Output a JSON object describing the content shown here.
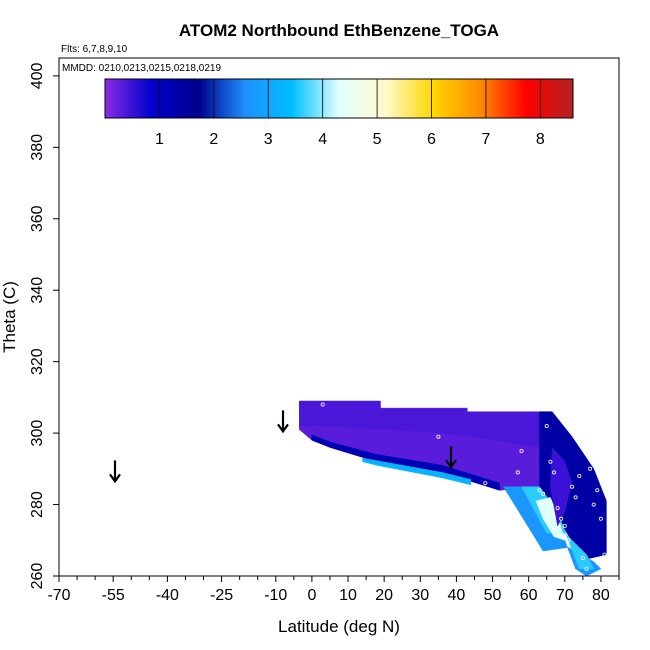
{
  "chart_data": {
    "type": "heatmap",
    "title": "ATOM2 Northbound EthBenzene_TOGA",
    "subtitle_flights": "Flts: 6,7,8,9,10",
    "subtitle_dates": "MMDD: 0210,0213,0215,0218,0219",
    "xlabel": "Latitude (deg N)",
    "ylabel": "Theta (C)",
    "xlim": [
      -70,
      85
    ],
    "ylim": [
      260,
      405
    ],
    "x_ticks": [
      -70,
      -55,
      -40,
      -25,
      -10,
      0,
      10,
      20,
      30,
      40,
      50,
      60,
      70,
      80
    ],
    "x_tick_labels": [
      "-70",
      "-55",
      "-40",
      "-25",
      "-10",
      "0",
      "10",
      "20",
      "30",
      "40",
      "50",
      "60",
      "70",
      "80"
    ],
    "x_minor_ticks": [
      -65,
      -60,
      -50,
      -45,
      -35,
      -30,
      -20,
      -15,
      -5,
      5,
      15,
      25,
      35,
      45,
      55,
      65,
      75,
      85
    ],
    "y_ticks": [
      260,
      280,
      300,
      320,
      340,
      360,
      380,
      400
    ],
    "y_tick_labels": [
      "260",
      "280",
      "300",
      "320",
      "340",
      "360",
      "380",
      "400"
    ],
    "colorbar": {
      "min": 0,
      "max": 8.6,
      "ticks": [
        1,
        2,
        3,
        4,
        5,
        6,
        7,
        8
      ],
      "tick_labels": [
        "1",
        "2",
        "3",
        "4",
        "5",
        "6",
        "7",
        "8"
      ],
      "colors": [
        "#8a2be2",
        "#0000cd",
        "#00008b",
        "#1e90ff",
        "#00bfff",
        "#e0ffff",
        "#fffacd",
        "#ffd700",
        "#ff8c00",
        "#ff0000",
        "#b22222"
      ]
    },
    "arrows": [
      {
        "lat": -54.5,
        "theta": 289
      },
      {
        "lat": -8,
        "theta": 303
      },
      {
        "lat": 38.5,
        "theta": 293
      }
    ],
    "regions": [
      {
        "name": "upper band",
        "value": 0.4,
        "polygon": [
          [
            -3.5,
            309
          ],
          [
            19,
            309
          ],
          [
            19,
            307
          ],
          [
            43,
            307
          ],
          [
            43,
            306
          ],
          [
            66.5,
            306
          ],
          [
            66.5,
            296
          ],
          [
            61,
            296
          ],
          [
            44,
            299
          ],
          [
            34,
            300
          ],
          [
            0,
            302
          ],
          [
            -3.5,
            302
          ]
        ]
      },
      {
        "name": "lower band",
        "value": 0.3,
        "polygon": [
          [
            -3.5,
            302
          ],
          [
            0,
            302
          ],
          [
            34,
            300
          ],
          [
            44,
            299
          ],
          [
            61,
            296
          ],
          [
            66.5,
            296
          ],
          [
            66.5,
            290
          ],
          [
            63,
            285
          ],
          [
            52,
            284
          ],
          [
            36,
            289
          ],
          [
            18,
            292
          ],
          [
            5,
            296
          ],
          [
            0,
            298
          ],
          [
            -3.5,
            301
          ]
        ]
      },
      {
        "name": "lower deep-blue edge",
        "value": 1.2,
        "polygon": [
          [
            0,
            298
          ],
          [
            5,
            296
          ],
          [
            18,
            292
          ],
          [
            36,
            289
          ],
          [
            52,
            284
          ],
          [
            52,
            286
          ],
          [
            36,
            291
          ],
          [
            18,
            294
          ],
          [
            5,
            297.5
          ],
          [
            0,
            299.5
          ]
        ]
      },
      {
        "name": "lower cyan edge",
        "value": 3.2,
        "polygon": [
          [
            14,
            293
          ],
          [
            36,
            289
          ],
          [
            44,
            287
          ],
          [
            44,
            285.5
          ],
          [
            36,
            287.5
          ],
          [
            18,
            291
          ],
          [
            14,
            292
          ]
        ]
      },
      {
        "name": "north blue core",
        "value": 1.4,
        "polygon": [
          [
            63,
            306
          ],
          [
            66.5,
            306
          ],
          [
            72,
            299
          ],
          [
            78,
            290
          ],
          [
            81.5,
            281
          ],
          [
            81.5,
            266
          ],
          [
            75,
            264.5
          ],
          [
            63,
            285
          ]
        ]
      },
      {
        "name": "north light-blue wedge",
        "value": 2.7,
        "polygon": [
          [
            53,
            285
          ],
          [
            62,
            285
          ],
          [
            66,
            280
          ],
          [
            70,
            270
          ],
          [
            73,
            262
          ],
          [
            76,
            260
          ],
          [
            80,
            262
          ],
          [
            78,
            264
          ],
          [
            71,
            268
          ],
          [
            64,
            267
          ]
        ]
      },
      {
        "name": "north cyan wedge",
        "value": 3.6,
        "polygon": [
          [
            58,
            285
          ],
          [
            63,
            285
          ],
          [
            68,
            278
          ],
          [
            71,
            270
          ],
          [
            74,
            262
          ],
          [
            78,
            262
          ],
          [
            76,
            266
          ],
          [
            70,
            272
          ],
          [
            65,
            272
          ]
        ]
      },
      {
        "name": "north white core",
        "value": 4.3,
        "polygon": [
          [
            62,
            281
          ],
          [
            66,
            282
          ],
          [
            68,
            277
          ],
          [
            70,
            270
          ],
          [
            67,
            271
          ],
          [
            64,
            276
          ]
        ]
      },
      {
        "name": "northern purple fringe",
        "value": 0.5,
        "polygon": [
          [
            66.5,
            296
          ],
          [
            70,
            292
          ],
          [
            72,
            286
          ],
          [
            70,
            278
          ],
          [
            68,
            274
          ],
          [
            66,
            285
          ]
        ]
      }
    ],
    "sample_points": [
      {
        "lat": 3,
        "theta": 308
      },
      {
        "lat": 35,
        "theta": 299
      },
      {
        "lat": 48,
        "theta": 286
      },
      {
        "lat": 57,
        "theta": 289
      },
      {
        "lat": 58,
        "theta": 295
      },
      {
        "lat": 63,
        "theta": 284
      },
      {
        "lat": 64,
        "theta": 283
      },
      {
        "lat": 65,
        "theta": 302
      },
      {
        "lat": 66,
        "theta": 292
      },
      {
        "lat": 67,
        "theta": 289
      },
      {
        "lat": 68,
        "theta": 279
      },
      {
        "lat": 69,
        "theta": 276
      },
      {
        "lat": 70,
        "theta": 274
      },
      {
        "lat": 71,
        "theta": 270
      },
      {
        "lat": 72,
        "theta": 285
      },
      {
        "lat": 73,
        "theta": 282
      },
      {
        "lat": 74,
        "theta": 288
      },
      {
        "lat": 75,
        "theta": 265
      },
      {
        "lat": 76,
        "theta": 262
      },
      {
        "lat": 77,
        "theta": 290
      },
      {
        "lat": 78,
        "theta": 280
      },
      {
        "lat": 79,
        "theta": 284
      },
      {
        "lat": 80,
        "theta": 276
      },
      {
        "lat": 81,
        "theta": 266
      }
    ]
  }
}
